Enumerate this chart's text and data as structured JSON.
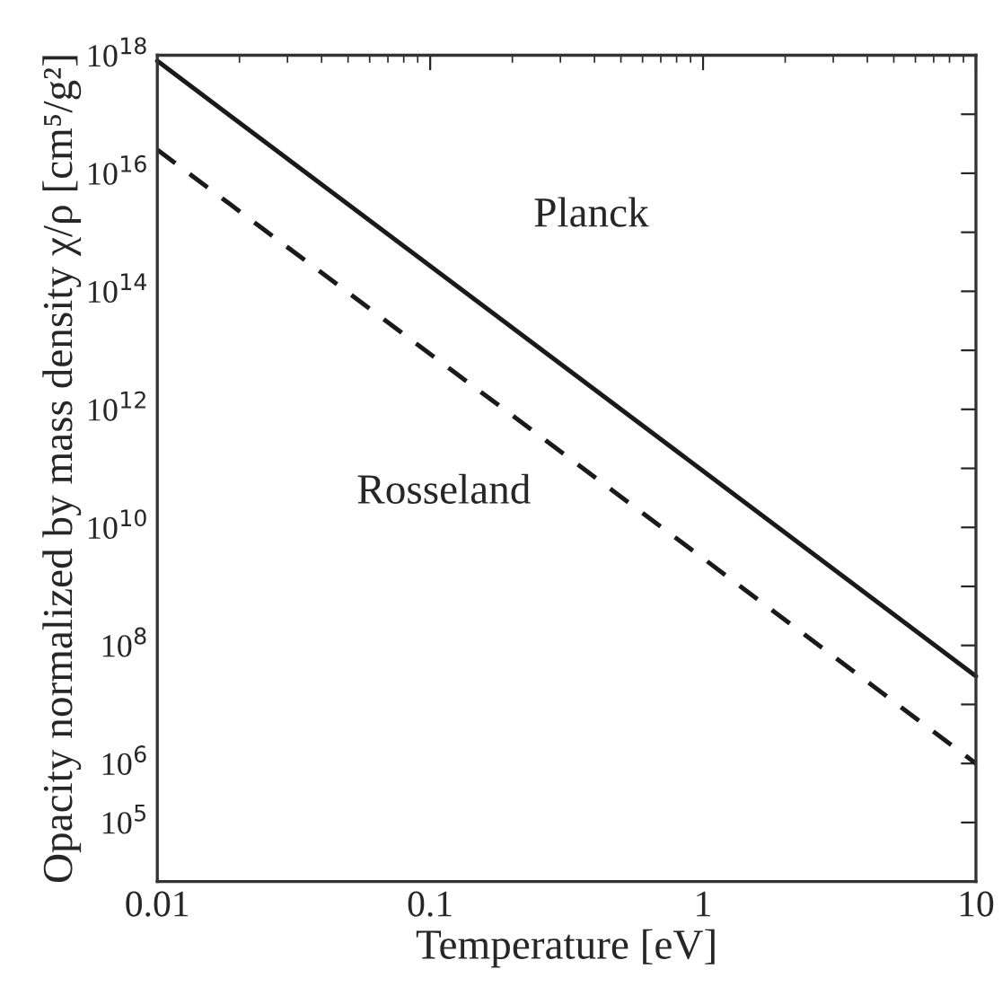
{
  "chart_data": {
    "type": "line",
    "xlabel": "Temperature [eV]",
    "ylabel": "Opacity normalized by mass density χ/ρ [cm⁵/g²]",
    "log": "xy",
    "xlim": [
      0.01,
      10
    ],
    "xticks": [
      0.01,
      0.1,
      1,
      10
    ],
    "ylim": [
      10000.0,
      1e+18
    ],
    "yticks": [
      {
        "value": 100000.0,
        "label": "10$^{5}$"
      },
      {
        "value": 1000000.0,
        "label": "10$^{6}$"
      },
      {
        "value": 10000000.0,
        "label": null
      },
      {
        "value": 100000000.0,
        "label": "10$^{8}$"
      },
      {
        "value": 1000000000.0,
        "label": null
      },
      {
        "value": 10000000000.0,
        "label": "10$^{10}$"
      },
      {
        "value": 100000000000.0,
        "label": null
      },
      {
        "value": 1000000000000.0,
        "label": "10$^{12}$"
      },
      {
        "value": 10000000000000.0,
        "label": null
      },
      {
        "value": 100000000000000.0,
        "label": "10$^{14}$"
      },
      {
        "value": 1000000000000000.0,
        "label": null
      },
      {
        "value": 1e+16,
        "label": "10$^{16}$"
      },
      {
        "value": 1e+17,
        "label": null
      },
      {
        "value": 1e+18,
        "label": "10$^{18}$"
      }
    ],
    "grid": false,
    "legend": false,
    "series": [
      {
        "color": "#1a1a1a",
        "line_style": "solid",
        "x": [
          0.01,
          1,
          10
        ],
        "values": [
          8e+17,
          90000000000.0,
          30000000.0
        ]
      },
      {
        "color": "#1a1a1a",
        "line_style": "dashed",
        "x": [
          0.01,
          1,
          10
        ],
        "values": [
          2.5e+16,
          3000000000.0,
          1000000.0
        ]
      }
    ],
    "annotations": [
      "Planck",
      "Rosseland"
    ]
  }
}
